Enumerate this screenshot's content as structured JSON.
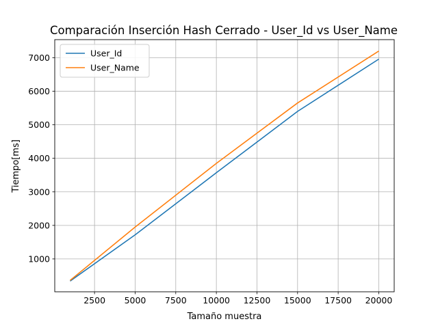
{
  "chart_data": {
    "type": "line",
    "title": "Comparación Inserción Hash Cerrado - User_Id vs User_Name",
    "xlabel": "Tamaño muestra",
    "ylabel": "Tiempo[ms]",
    "x": [
      1000,
      5000,
      10000,
      15000,
      20000
    ],
    "series": [
      {
        "name": "User_Id",
        "color": "#1f77b4",
        "values": [
          340,
          1720,
          3570,
          5400,
          6960
        ]
      },
      {
        "name": "User_Name",
        "color": "#ff7f0e",
        "values": [
          360,
          1950,
          3850,
          5650,
          7200
        ]
      }
    ],
    "xlim": [
      50,
      20950
    ],
    "ylim": [
      20,
      7540
    ],
    "xticks": [
      2500,
      5000,
      7500,
      10000,
      12500,
      15000,
      17500,
      20000
    ],
    "xtick_labels": [
      "2500",
      "5000",
      "7500",
      "10000",
      "12500",
      "15000",
      "17500",
      "20000"
    ],
    "yticks": [
      1000,
      2000,
      3000,
      4000,
      5000,
      6000,
      7000
    ],
    "ytick_labels": [
      "1000",
      "2000",
      "3000",
      "4000",
      "5000",
      "6000",
      "7000"
    ],
    "grid": true,
    "legend_position": "upper-left"
  }
}
